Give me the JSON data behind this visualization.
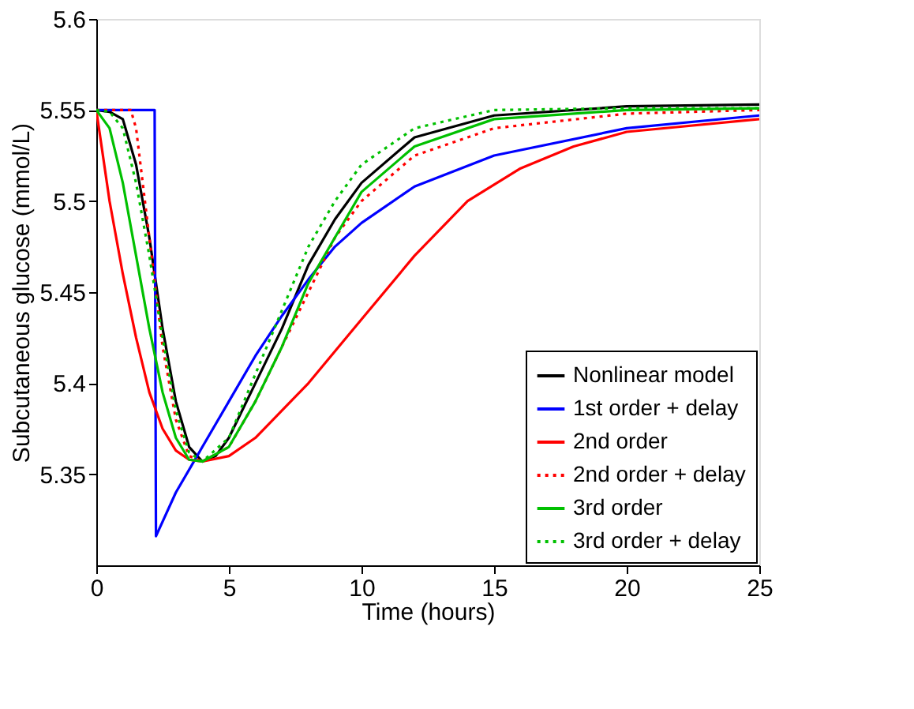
{
  "chart_data": {
    "type": "line",
    "xlabel": "Time (hours)",
    "ylabel": "Subcutaneous glucose (mmol/L)",
    "xlim": [
      0,
      25
    ],
    "xticks": [
      0,
      5,
      10,
      15,
      20,
      25
    ],
    "ylim": [
      5.3,
      5.6
    ],
    "yticks": [
      5.35,
      5.4,
      5.45,
      5.5,
      5.55,
      5.6
    ],
    "grid": false,
    "legend": "bottom right",
    "marker": "none",
    "series": [
      {
        "name": "Nonlinear model",
        "color": "#000000",
        "line_style": "solid",
        "x": [
          0,
          0.5,
          1,
          1.5,
          2,
          2.5,
          3,
          3.5,
          4,
          4.5,
          5,
          6,
          7,
          8,
          9,
          10,
          12,
          15,
          20,
          25
        ],
        "values": [
          5.55,
          5.549,
          5.545,
          5.52,
          5.48,
          5.43,
          5.39,
          5.365,
          5.357,
          5.36,
          5.37,
          5.4,
          5.43,
          5.465,
          5.49,
          5.51,
          5.535,
          5.547,
          5.552,
          5.553
        ]
      },
      {
        "name": "1st order + delay",
        "color": "#0000ff",
        "line_style": "solid",
        "x": [
          0,
          2.2,
          2.25,
          3,
          4,
          5,
          6,
          7,
          8,
          9,
          10,
          12,
          15,
          20,
          25
        ],
        "values": [
          5.55,
          5.55,
          5.316,
          5.34,
          5.365,
          5.39,
          5.415,
          5.437,
          5.457,
          5.475,
          5.488,
          5.508,
          5.525,
          5.54,
          5.547
        ]
      },
      {
        "name": "2nd order",
        "color": "#ff0000",
        "line_style": "solid",
        "x": [
          0,
          0.5,
          1,
          1.5,
          2,
          2.5,
          3,
          3.5,
          4,
          5,
          6,
          8,
          10,
          12,
          14,
          16,
          18,
          20,
          25
        ],
        "values": [
          5.55,
          5.5,
          5.46,
          5.425,
          5.395,
          5.375,
          5.363,
          5.358,
          5.357,
          5.36,
          5.37,
          5.4,
          5.435,
          5.47,
          5.5,
          5.518,
          5.53,
          5.538,
          5.545
        ]
      },
      {
        "name": "2nd order + delay",
        "color": "#ff0000",
        "line_style": "dotted",
        "x": [
          0,
          1.3,
          1.5,
          2,
          2.5,
          3,
          3.5,
          4,
          5,
          6,
          7,
          8,
          9,
          10,
          12,
          15,
          20,
          25
        ],
        "values": [
          5.55,
          5.55,
          5.54,
          5.48,
          5.42,
          5.38,
          5.36,
          5.357,
          5.365,
          5.39,
          5.42,
          5.45,
          5.48,
          5.5,
          5.525,
          5.54,
          5.548,
          5.55
        ]
      },
      {
        "name": "3rd order",
        "color": "#00c000",
        "line_style": "solid",
        "x": [
          0,
          0.5,
          1,
          1.5,
          2,
          2.5,
          3,
          3.5,
          4,
          5,
          6,
          7,
          8,
          9,
          10,
          12,
          15,
          20,
          25
        ],
        "values": [
          5.55,
          5.54,
          5.51,
          5.47,
          5.43,
          5.395,
          5.37,
          5.358,
          5.357,
          5.365,
          5.39,
          5.42,
          5.455,
          5.48,
          5.505,
          5.53,
          5.545,
          5.55,
          5.551
        ]
      },
      {
        "name": "3rd order + delay",
        "color": "#00c000",
        "line_style": "dotted",
        "x": [
          0,
          0.5,
          1,
          1.5,
          2,
          2.5,
          3,
          3.5,
          4,
          5,
          6,
          7,
          8,
          9,
          10,
          12,
          15,
          20,
          25
        ],
        "values": [
          5.55,
          5.549,
          5.54,
          5.51,
          5.47,
          5.425,
          5.385,
          5.362,
          5.357,
          5.37,
          5.405,
          5.44,
          5.475,
          5.5,
          5.52,
          5.54,
          5.55,
          5.551,
          5.551
        ]
      }
    ]
  }
}
